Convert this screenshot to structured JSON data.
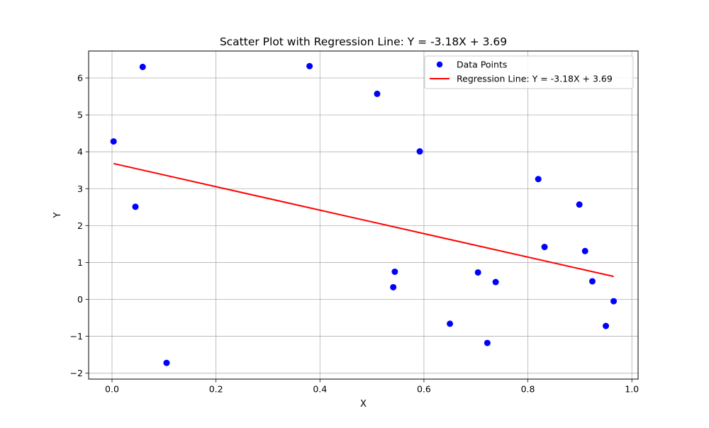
{
  "chart_data": {
    "type": "scatter",
    "title": "Scatter Plot with Regression Line: Y = -3.18X + 3.69",
    "xlabel": "X",
    "ylabel": "Y",
    "xlim": [
      -0.045,
      1.012
    ],
    "ylim": [
      -2.16,
      6.73
    ],
    "x_ticks": [
      0.0,
      0.2,
      0.4,
      0.6,
      0.8,
      1.0
    ],
    "x_tick_labels": [
      "0.0",
      "0.2",
      "0.4",
      "0.6",
      "0.8",
      "1.0"
    ],
    "y_ticks": [
      -2,
      -1,
      0,
      1,
      2,
      3,
      4,
      5,
      6
    ],
    "y_tick_labels": [
      "−2",
      "−1",
      "0",
      "1",
      "2",
      "3",
      "4",
      "5",
      "6"
    ],
    "grid": true,
    "legend_position": "top-right",
    "series": [
      {
        "name": "Data Points",
        "kind": "scatter",
        "color": "#0000ff",
        "points": [
          {
            "x": 0.003,
            "y": 4.28
          },
          {
            "x": 0.045,
            "y": 2.51
          },
          {
            "x": 0.059,
            "y": 6.3
          },
          {
            "x": 0.105,
            "y": -1.72
          },
          {
            "x": 0.38,
            "y": 6.32
          },
          {
            "x": 0.51,
            "y": 5.57
          },
          {
            "x": 0.541,
            "y": 0.33
          },
          {
            "x": 0.544,
            "y": 0.75
          },
          {
            "x": 0.592,
            "y": 4.01
          },
          {
            "x": 0.65,
            "y": -0.66
          },
          {
            "x": 0.704,
            "y": 0.73
          },
          {
            "x": 0.722,
            "y": -1.18
          },
          {
            "x": 0.738,
            "y": 0.47
          },
          {
            "x": 0.82,
            "y": 3.26
          },
          {
            "x": 0.832,
            "y": 1.42
          },
          {
            "x": 0.899,
            "y": 2.57
          },
          {
            "x": 0.91,
            "y": 1.31
          },
          {
            "x": 0.924,
            "y": 0.49
          },
          {
            "x": 0.95,
            "y": -0.72
          },
          {
            "x": 0.965,
            "y": -0.05
          }
        ]
      },
      {
        "name": "Regression Line: Y = -3.18X + 3.69",
        "kind": "line",
        "color": "#ff0000",
        "slope": -3.18,
        "intercept": 3.69,
        "x_range": [
          0.003,
          0.965
        ]
      }
    ]
  }
}
